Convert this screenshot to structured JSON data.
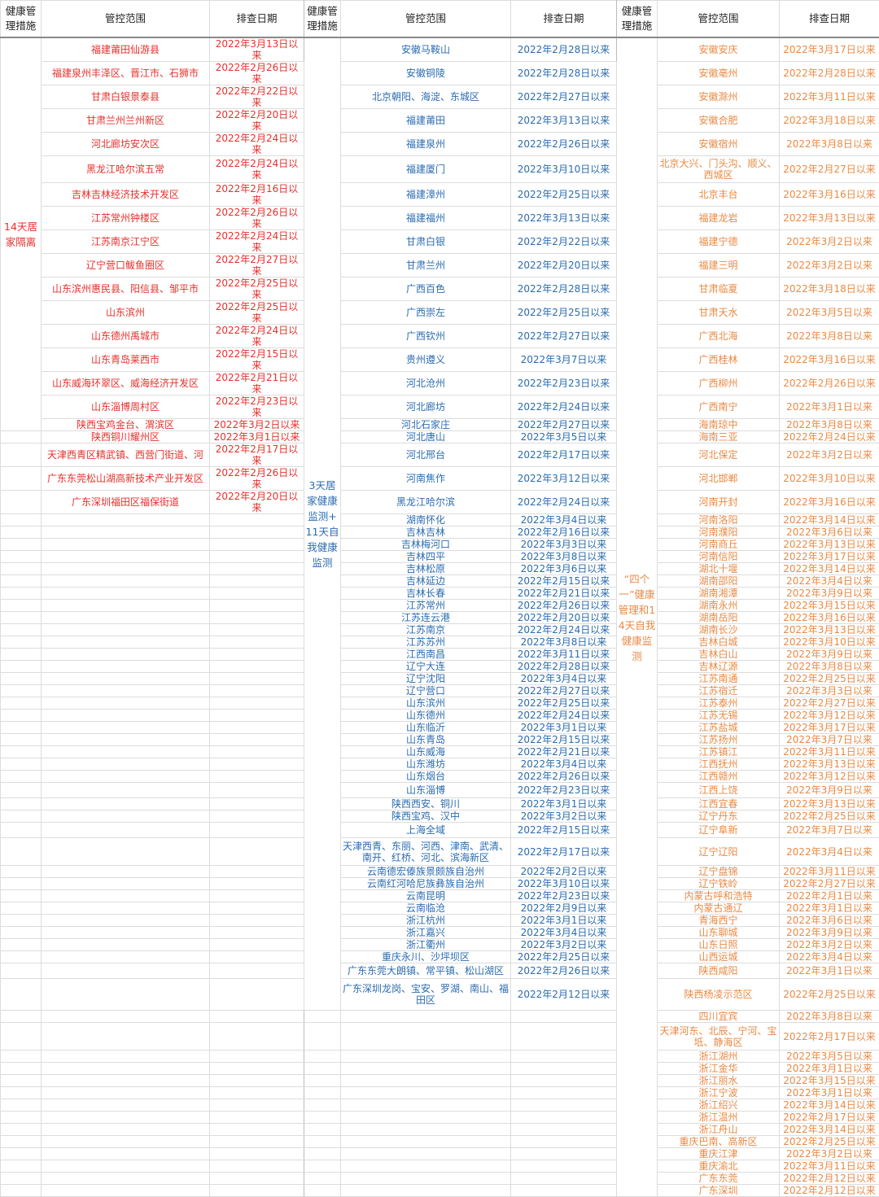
{
  "headers": {
    "measure": "健康管理措施",
    "area": "管控范围",
    "date": "排查日期"
  },
  "groups": [
    {
      "measure": "14天居家隔离",
      "color": "#e8302c",
      "rows": [
        {
          "area": "福建莆田仙游县",
          "date": "2022年3月13日以来"
        },
        {
          "area": "福建泉州丰泽区、晋江市、石狮市",
          "date": "2022年2月26日以来"
        },
        {
          "area": "甘肃白银景泰县",
          "date": "2022年2月22日以来"
        },
        {
          "area": "甘肃兰州兰州新区",
          "date": "2022年2月20日以来"
        },
        {
          "area": "河北廊坊安次区",
          "date": "2022年2月24日以来"
        },
        {
          "area": "黑龙江哈尔滨五常",
          "date": "2022年2月24日以来"
        },
        {
          "area": "吉林吉林经济技术开发区",
          "date": "2022年2月16日以来"
        },
        {
          "area": "江苏常州钟楼区",
          "date": "2022年2月26日以来"
        },
        {
          "area": "江苏南京江宁区",
          "date": "2022年2月24日以来"
        },
        {
          "area": "辽宁营口鲅鱼圈区",
          "date": "2022年2月27日以来"
        },
        {
          "area": "山东滨州惠民县、阳信县、邹平市",
          "date": "2022年2月25日以来"
        },
        {
          "area": "山东滨州",
          "date": "2022年2月25日以来"
        },
        {
          "area": "山东德州禹城市",
          "date": "2022年2月24日以来"
        },
        {
          "area": "山东青岛莱西市",
          "date": "2022年2月15日以来"
        },
        {
          "area": "山东威海环翠区、威海经济开发区",
          "date": "2022年2月21日以来"
        },
        {
          "area": "山东淄博周村区",
          "date": "2022年2月23日以来"
        },
        {
          "area": "陕西宝鸡金台、渭滨区",
          "date": "2022年3月2日以来"
        },
        {
          "area": "陕西铜川耀州区",
          "date": "2022年3月1日以来"
        },
        {
          "area": "天津西青区精武镇、西营门街道、河",
          "date": "2022年2月17日以来"
        },
        {
          "area": "广东东莞松山湖高新技术产业开发区",
          "date": "2022年2月26日以来"
        },
        {
          "area": "广东深圳福田区福保街道",
          "date": "2022年2月20日以来"
        }
      ]
    },
    {
      "measure": "3天居家健康监测+11天自我健康监测",
      "color": "#2b6cb0",
      "rows": [
        {
          "area": "安徽马鞍山",
          "date": "2022年2月28日以来"
        },
        {
          "area": "安徽铜陵",
          "date": "2022年2月28日以来"
        },
        {
          "area": "北京朝阳、海淀、东城区",
          "date": "2022年2月27日以来"
        },
        {
          "area": "福建莆田",
          "date": "2022年3月13日以来"
        },
        {
          "area": "福建泉州",
          "date": "2022年2月26日以来"
        },
        {
          "area": "福建厦门",
          "date": "2022年3月10日以来"
        },
        {
          "area": "福建漳州",
          "date": "2022年2月25日以来"
        },
        {
          "area": "福建福州",
          "date": "2022年3月13日以来"
        },
        {
          "area": "甘肃白银",
          "date": "2022年2月22日以来"
        },
        {
          "area": "甘肃兰州",
          "date": "2022年2月20日以来"
        },
        {
          "area": "广西百色",
          "date": "2022年2月28日以来"
        },
        {
          "area": "广西崇左",
          "date": "2022年2月25日以来"
        },
        {
          "area": "广西钦州",
          "date": "2022年2月27日以来"
        },
        {
          "area": "贵州遵义",
          "date": "2022年3月7日以来"
        },
        {
          "area": "河北沧州",
          "date": "2022年2月23日以来"
        },
        {
          "area": "河北廊坊",
          "date": "2022年2月24日以来"
        },
        {
          "area": "河北石家庄",
          "date": "2022年2月27日以来"
        },
        {
          "area": "河北唐山",
          "date": "2022年3月5日以来"
        },
        {
          "area": "河北邢台",
          "date": "2022年2月17日以来"
        },
        {
          "area": "河南焦作",
          "date": "2022年3月12日以来"
        },
        {
          "area": "黑龙江哈尔滨",
          "date": "2022年2月24日以来"
        },
        {
          "area": "湖南怀化",
          "date": "2022年3月4日以来"
        },
        {
          "area": "吉林吉林",
          "date": "2022年2月16日以来"
        },
        {
          "area": "吉林梅河口",
          "date": "2022年3月3日以来"
        },
        {
          "area": "吉林四平",
          "date": "2022年3月8日以来"
        },
        {
          "area": "吉林松原",
          "date": "2022年3月6日以来"
        },
        {
          "area": "吉林延边",
          "date": "2022年2月15日以来"
        },
        {
          "area": "吉林长春",
          "date": "2022年2月21日以来"
        },
        {
          "area": "江苏常州",
          "date": "2022年2月26日以来"
        },
        {
          "area": "江苏连云港",
          "date": "2022年2月20日以来"
        },
        {
          "area": "江苏南京",
          "date": "2022年2月24日以来"
        },
        {
          "area": "江苏苏州",
          "date": "2022年3月8日以来"
        },
        {
          "area": "江西南昌",
          "date": "2022年3月11日以来"
        },
        {
          "area": "辽宁大连",
          "date": "2022年2月28日以来"
        },
        {
          "area": "辽宁沈阳",
          "date": "2022年3月4日以来"
        },
        {
          "area": "辽宁营口",
          "date": "2022年2月27日以来"
        },
        {
          "area": "山东滨州",
          "date": "2022年2月25日以来"
        },
        {
          "area": "山东德州",
          "date": "2022年2月24日以来"
        },
        {
          "area": "山东临沂",
          "date": "2022年3月1日以来"
        },
        {
          "area": "山东青岛",
          "date": "2022年2月15日以来"
        },
        {
          "area": "山东威海",
          "date": "2022年2月21日以来"
        },
        {
          "area": "山东潍坊",
          "date": "2022年3月4日以来"
        },
        {
          "area": "山东烟台",
          "date": "2022年2月26日以来"
        },
        {
          "area": "山东淄博",
          "date": "2022年2月23日以来"
        },
        {
          "area": "陕西西安、铜川",
          "date": "2022年3月1日以来"
        },
        {
          "area": "陕西宝鸡、汉中",
          "date": "2022年3月2日以来"
        },
        {
          "area": "上海全域",
          "date": "2022年2月15日以来"
        },
        {
          "area": "天津西青、东丽、河西、津南、武清、南开、红桥、河北、滨海新区",
          "date": "2022年2月17日以来"
        },
        {
          "area": "云南德宏傣族景颇族自治州",
          "date": "2022年2月2日以来"
        },
        {
          "area": "云南红河哈尼族彝族自治州",
          "date": "2022年3月10日以来"
        },
        {
          "area": "云南昆明",
          "date": "2022年2月23日以来"
        },
        {
          "area": "云南临沧",
          "date": "2022年2月9日以来"
        },
        {
          "area": "浙江杭州",
          "date": "2022年3月1日以来"
        },
        {
          "area": "浙江嘉兴",
          "date": "2022年3月4日以来"
        },
        {
          "area": "浙江衢州",
          "date": "2022年3月2日以来"
        },
        {
          "area": "重庆永川、沙坪坝区",
          "date": "2022年2月25日以来"
        },
        {
          "area": "广东东莞大朗镇、常平镇、松山湖区",
          "date": "2022年2月26日以来"
        },
        {
          "area": "广东深圳龙岗、宝安、罗湖、南山、福田区",
          "date": "2022年2月12日以来"
        }
      ]
    },
    {
      "measure": "“四个一”健康管理和14天自我健康监测",
      "color": "#e98a45",
      "rows": [
        {
          "area": "安徽安庆",
          "date": "2022年3月17日以来"
        },
        {
          "area": "安徽亳州",
          "date": "2022年2月28日以来"
        },
        {
          "area": "安徽滁州",
          "date": "2022年3月11日以来"
        },
        {
          "area": "安徽合肥",
          "date": "2022年3月18日以来"
        },
        {
          "area": "安徽宿州",
          "date": "2022年3月8日以来"
        },
        {
          "area": "北京大兴、门头沟、顺义、西城区",
          "date": "2022年2月27日以来"
        },
        {
          "area": "北京丰台",
          "date": "2022年3月16日以来"
        },
        {
          "area": "福建龙岩",
          "date": "2022年3月13日以来"
        },
        {
          "area": "福建宁德",
          "date": "2022年3月2日以来"
        },
        {
          "area": "福建三明",
          "date": "2022年3月2日以来"
        },
        {
          "area": "甘肃临夏",
          "date": "2022年3月18日以来"
        },
        {
          "area": "甘肃天水",
          "date": "2022年3月5日以来"
        },
        {
          "area": "广西北海",
          "date": "2022年3月8日以来"
        },
        {
          "area": "广西桂林",
          "date": "2022年3月16日以来"
        },
        {
          "area": "广西柳州",
          "date": "2022年2月26日以来"
        },
        {
          "area": "广西南宁",
          "date": "2022年3月1日以来"
        },
        {
          "area": "海南琼中",
          "date": "2022年3月8日以来"
        },
        {
          "area": "海南三亚",
          "date": "2022年2月24日以来"
        },
        {
          "area": "河北保定",
          "date": "2022年3月2日以来"
        },
        {
          "area": "河北邯郸",
          "date": "2022年3月10日以来"
        },
        {
          "area": "河南开封",
          "date": "2022年3月16日以来"
        },
        {
          "area": "河南洛阳",
          "date": "2022年3月14日以来"
        },
        {
          "area": "河南濮阳",
          "date": "2022年3月6日以来"
        },
        {
          "area": "河南商丘",
          "date": "2022年3月13日以来"
        },
        {
          "area": "河南信阳",
          "date": "2022年3月17日以来"
        },
        {
          "area": "湖北十堰",
          "date": "2022年3月14日以来"
        },
        {
          "area": "湖南邵阳",
          "date": "2022年3月4日以来"
        },
        {
          "area": "湖南湘潭",
          "date": "2022年3月9日以来"
        },
        {
          "area": "湖南永州",
          "date": "2022年3月15日以来"
        },
        {
          "area": "湖南岳阳",
          "date": "2022年3月16日以来"
        },
        {
          "area": "湖南长沙",
          "date": "2022年3月13日以来"
        },
        {
          "area": "吉林白城",
          "date": "2022年3月10日以来"
        },
        {
          "area": "吉林白山",
          "date": "2022年3月9日以来"
        },
        {
          "area": "吉林辽源",
          "date": "2022年3月8日以来"
        },
        {
          "area": "江苏南通",
          "date": "2022年2月25日以来"
        },
        {
          "area": "江苏宿迁",
          "date": "2022年3月3日以来"
        },
        {
          "area": "江苏泰州",
          "date": "2022年2月27日以来"
        },
        {
          "area": "江苏无锡",
          "date": "2022年3月12日以来"
        },
        {
          "area": "江苏盐城",
          "date": "2022年3月17日以来"
        },
        {
          "area": "江苏扬州",
          "date": "2022年3月7日以来"
        },
        {
          "area": "江苏镇江",
          "date": "2022年3月11日以来"
        },
        {
          "area": "江西抚州",
          "date": "2022年3月13日以来"
        },
        {
          "area": "江西赣州",
          "date": "2022年3月12日以来"
        },
        {
          "area": "江西上饶",
          "date": "2022年3月9日以来"
        },
        {
          "area": "江西宜春",
          "date": "2022年3月13日以来"
        },
        {
          "area": "辽宁丹东",
          "date": "2022年2月25日以来"
        },
        {
          "area": "辽宁阜新",
          "date": "2022年3月7日以来"
        },
        {
          "area": "辽宁辽阳",
          "date": "2022年3月4日以来"
        },
        {
          "area": "辽宁盘锦",
          "date": "2022年3月11日以来"
        },
        {
          "area": "辽宁铁岭",
          "date": "2022年2月27日以来"
        },
        {
          "area": "内蒙古呼和浩特",
          "date": "2022年2月1日以来"
        },
        {
          "area": "内蒙古通辽",
          "date": "2022年3月1日以来"
        },
        {
          "area": "青海西宁",
          "date": "2022年3月6日以来"
        },
        {
          "area": "山东聊城",
          "date": "2022年3月9日以来"
        },
        {
          "area": "山东日照",
          "date": "2022年3月2日以来"
        },
        {
          "area": "山西运城",
          "date": "2022年3月4日以来"
        },
        {
          "area": "陕西咸阳",
          "date": "2022年3月1日以来"
        },
        {
          "area": "陕西杨凌示范区",
          "date": "2022年2月25日以来"
        },
        {
          "area": "四川宜宾",
          "date": "2022年3月8日以来"
        },
        {
          "area": "天津河东、北辰、宁河、宝坻、静海区",
          "date": "2022年2月17日以来"
        },
        {
          "area": "浙江湖州",
          "date": "2022年3月5日以来"
        },
        {
          "area": "浙江金华",
          "date": "2022年3月1日以来"
        },
        {
          "area": "浙江丽水",
          "date": "2022年3月15日以来"
        },
        {
          "area": "浙江宁波",
          "date": "2022年3月1日以来"
        },
        {
          "area": "浙江绍兴",
          "date": "2022年3月14日以来"
        },
        {
          "area": "浙江温州",
          "date": "2022年2月17日以来"
        },
        {
          "area": "浙江舟山",
          "date": "2022年3月14日以来"
        },
        {
          "area": "重庆巴南、高新区",
          "date": "2022年2月25日以来"
        },
        {
          "area": "重庆江津",
          "date": "2022年3月2日以来"
        },
        {
          "area": "重庆渝北",
          "date": "2022年3月11日以来"
        },
        {
          "area": "广东东莞",
          "date": "2022年2月12日以来"
        },
        {
          "area": "广东深圳",
          "date": "2022年2月12日以来"
        }
      ]
    }
  ]
}
